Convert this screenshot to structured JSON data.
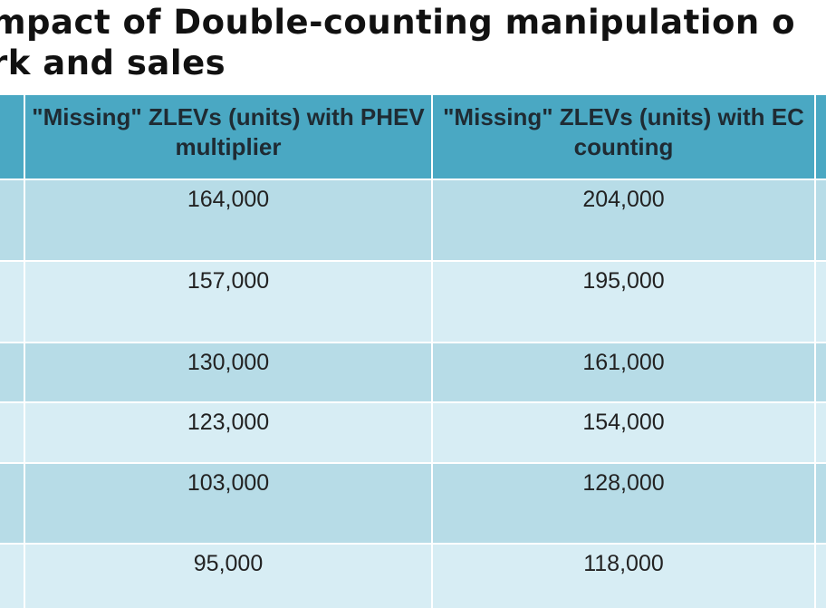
{
  "slide": {
    "title_line1": "mpact of Double-counting manipulation o",
    "title_line2": "rk and sales"
  },
  "table": {
    "headers": [
      "\"Missing\" ZLEVs (units) with PHEV multiplier",
      "\"Missing\" ZLEVs (units) with EC counting"
    ],
    "rows": [
      [
        "164,000",
        "204,000"
      ],
      [
        "157,000",
        "195,000"
      ],
      [
        "130,000",
        "161,000"
      ],
      [
        "123,000",
        "154,000"
      ],
      [
        "103,000",
        "128,000"
      ],
      [
        "95,000",
        "118,000"
      ]
    ]
  },
  "colors": {
    "header_bg": "#4aa8c3",
    "row_dark": "#b7dce7",
    "row_light": "#d7edf4"
  }
}
